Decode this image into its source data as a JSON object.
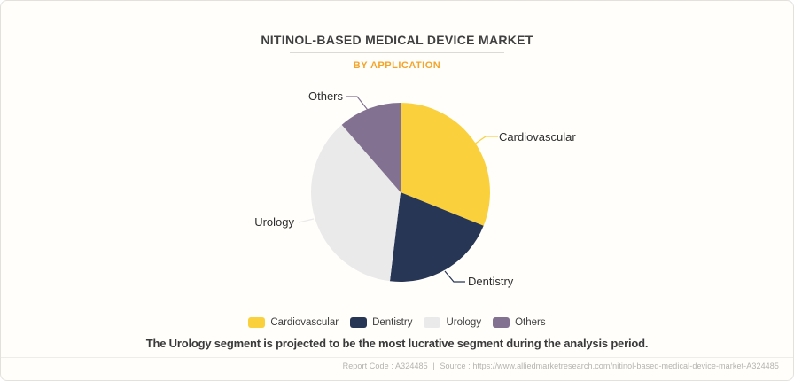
{
  "page": {
    "background": "#FFFEFB",
    "border_color": "#E4E1DD"
  },
  "header": {
    "title": "NITINOL-BASED MEDICAL DEVICE MARKET",
    "subtitle": "BY APPLICATION",
    "subtitle_color": "#F5A42A",
    "title_color": "#404040"
  },
  "chart_data": {
    "type": "pie",
    "title": "NITINOL-BASED MEDICAL DEVICE MARKET",
    "subtitle": "BY APPLICATION",
    "categories": [
      "Cardiovascular",
      "Dentistry",
      "Urology",
      "Others"
    ],
    "values": [
      31.1,
      20.8,
      36.7,
      11.4
    ],
    "colors": [
      "#FAD13C",
      "#283655",
      "#EBEAEA",
      "#827190"
    ],
    "start_angle_deg": 0,
    "direction": "clockwise",
    "legend_position": "bottom",
    "labels": "outside-with-leader-lines"
  },
  "statement": {
    "text": "The Urology segment is projected to be the most lucrative segment during the analysis period."
  },
  "footer": {
    "report_code": "Report Code : A324485",
    "separator": "|",
    "source": "Source : https://www.alliedmarketresearch.com/nitinol-based-medical-device-market-A324485"
  }
}
